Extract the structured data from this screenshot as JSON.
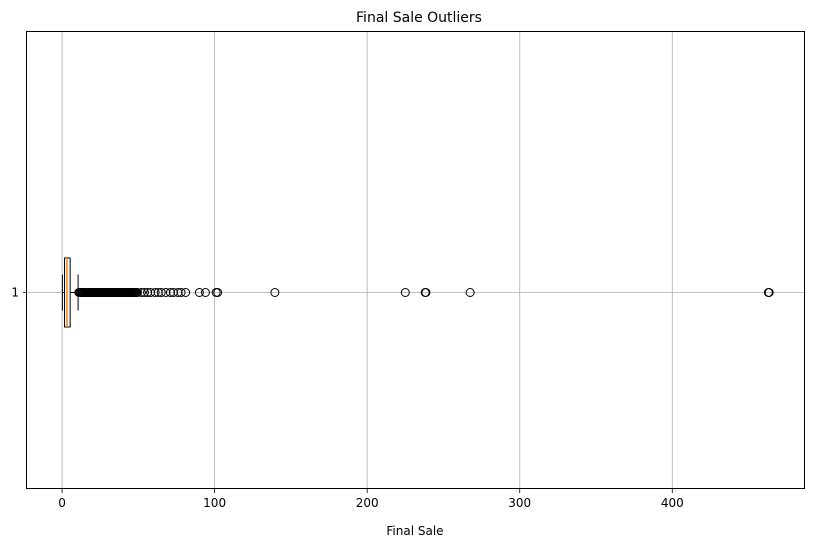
{
  "chart_data": {
    "type": "boxplot",
    "orientation": "horizontal",
    "title": "Final Sale Outliers",
    "xlabel": "Final Sale",
    "ylabel": "",
    "xlim": [
      -23,
      487
    ],
    "xticks": [
      0,
      100,
      200,
      300,
      400
    ],
    "yticks": [
      "1"
    ],
    "grid": true,
    "series": [
      {
        "category": "1",
        "whisker_low": 0.2,
        "q1": 1.6,
        "median": 3.2,
        "q3": 5.3,
        "whisker_high": 10.5,
        "box_color": "#ffffff",
        "median_color": "#ff7f0e",
        "outliers_dense_range": [
          11,
          50
        ],
        "outliers": [
          52,
          54,
          56,
          58,
          61,
          63,
          65,
          68,
          71,
          73,
          76,
          78,
          81,
          90,
          94,
          101,
          102,
          139.5,
          225,
          238,
          238.5,
          267.5,
          463,
          463.5
        ]
      }
    ]
  }
}
